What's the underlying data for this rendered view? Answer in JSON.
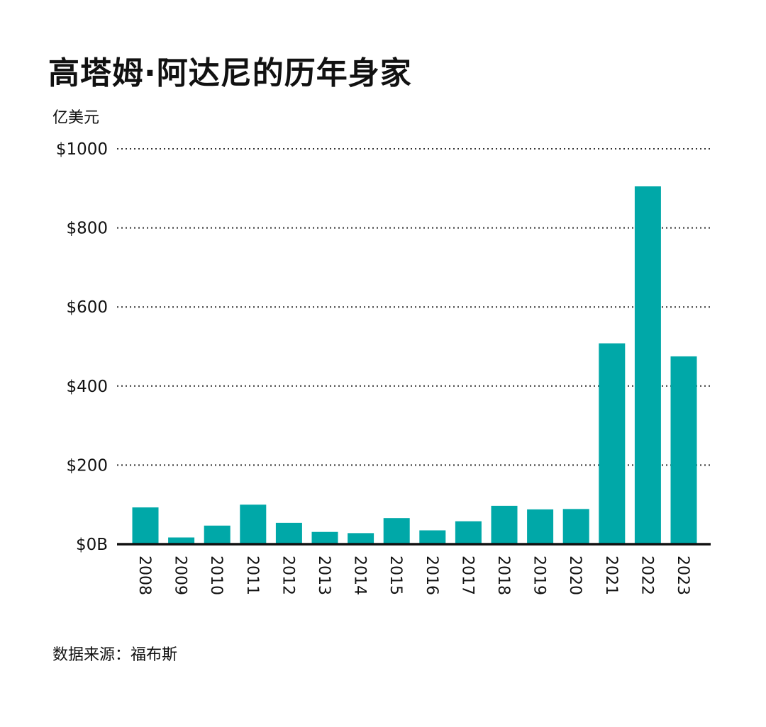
{
  "header": {
    "title": "高塔姆·阿达尼的历年身家",
    "unit_label": "亿美元"
  },
  "footer": {
    "source": "数据来源：福布斯"
  },
  "colors": {
    "bar": "#00A8A8",
    "axis": "#111111",
    "grid": "#333333",
    "text": "#111111"
  },
  "chart_data": {
    "type": "bar",
    "title": "高塔姆·阿达尼的历年身家",
    "ylabel": "亿美元",
    "xlabel": "",
    "categories": [
      "2008",
      "2009",
      "2010",
      "2011",
      "2012",
      "2013",
      "2014",
      "2015",
      "2016",
      "2017",
      "2018",
      "2019",
      "2020",
      "2021",
      "2022",
      "2023"
    ],
    "values": [
      93,
      17,
      47,
      100,
      54,
      31,
      28,
      66,
      35,
      58,
      97,
      88,
      89,
      508,
      905,
      475
    ],
    "ylim": [
      0,
      1000
    ],
    "yticks": [
      {
        "value": 0,
        "label": "$0B"
      },
      {
        "value": 200,
        "label": "$200"
      },
      {
        "value": 400,
        "label": "$400"
      },
      {
        "value": 600,
        "label": "$600"
      },
      {
        "value": 800,
        "label": "$800"
      },
      {
        "value": 1000,
        "label": "$1000"
      }
    ],
    "grid": "dotted horizontal",
    "legend": "none"
  }
}
